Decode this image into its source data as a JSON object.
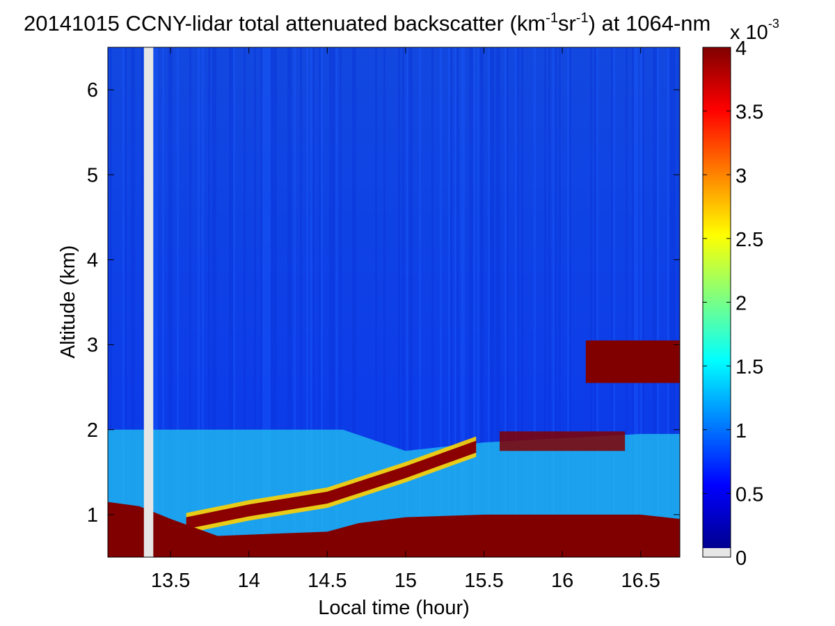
{
  "chart_data": {
    "type": "heatmap",
    "title": "20141015 CCNY-lidar total attenuated backscatter (km",
    "title_parts": {
      "unit_a": "-1",
      "mid": "sr",
      "unit_b": "-1",
      "tail": ") at 1064-nm"
    },
    "xlabel": "Local time (hour)",
    "ylabel": "Altitude (km)",
    "xlim": [
      13.1,
      16.75
    ],
    "ylim": [
      0.5,
      6.5
    ],
    "xticks": [
      13.5,
      14,
      14.5,
      15,
      15.5,
      16,
      16.5
    ],
    "xtick_labels": [
      "13.5",
      "14",
      "14.5",
      "15",
      "15.5",
      "16",
      "16.5"
    ],
    "yticks": [
      1,
      2,
      3,
      4,
      5,
      6
    ],
    "ytick_labels": [
      "1",
      "2",
      "3",
      "4",
      "5",
      "6"
    ],
    "colorbar": {
      "min": 0,
      "max": 0.004,
      "ticks": [
        0,
        0.5,
        1,
        1.5,
        2,
        2.5,
        3,
        3.5,
        4
      ],
      "tick_labels": [
        "0",
        "0.5",
        "1",
        "1.5",
        "2",
        "2.5",
        "3",
        "3.5",
        "4"
      ],
      "multiplier": "x 10",
      "multiplier_exp": "-3",
      "colormap": "jet",
      "nodata_color": "#e6e6e6"
    },
    "features": {
      "boundary_layer_top_km": [
        {
          "t": 13.3,
          "h": 2.0
        },
        {
          "t": 14.0,
          "h": 2.0
        },
        {
          "t": 14.6,
          "h": 2.0
        },
        {
          "t": 15.0,
          "h": 1.75
        },
        {
          "t": 15.5,
          "h": 1.85
        },
        {
          "t": 16.0,
          "h": 1.9
        },
        {
          "t": 16.5,
          "h": 1.95
        }
      ],
      "rising_aerosol_layer_km": [
        {
          "t": 13.6,
          "h": 0.9
        },
        {
          "t": 14.0,
          "h": 1.05
        },
        {
          "t": 14.5,
          "h": 1.2
        },
        {
          "t": 15.0,
          "h": 1.5
        },
        {
          "t": 15.3,
          "h": 1.7
        },
        {
          "t": 15.45,
          "h": 1.8
        }
      ],
      "elevated_cloud_layer": {
        "t_start": 16.15,
        "t_end": 16.75,
        "h_low": 2.55,
        "h_high": 3.05
      },
      "nodata_gap_hours": [
        13.33,
        13.39
      ]
    }
  }
}
